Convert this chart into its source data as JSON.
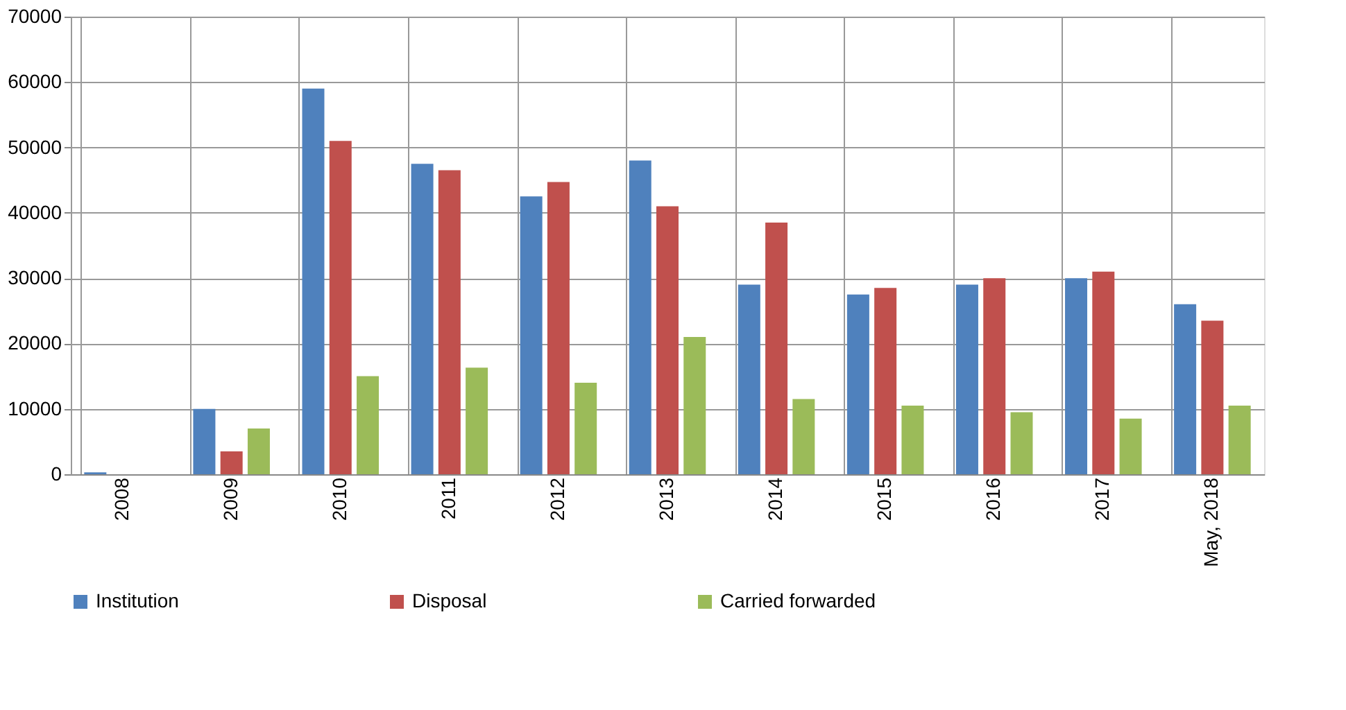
{
  "chart_data": {
    "type": "bar",
    "categories": [
      "2008",
      "2009",
      "2010",
      "2011",
      "2012",
      "2013",
      "2014",
      "2015",
      "2016",
      "2017",
      "May, 2018"
    ],
    "series": [
      {
        "name": "Institution",
        "color": "#4f81bd",
        "values": [
          300,
          10000,
          59000,
          47500,
          42500,
          48000,
          29000,
          27500,
          29000,
          30000,
          26000
        ]
      },
      {
        "name": "Disposal",
        "color": "#c0504d",
        "values": [
          null,
          3500,
          51000,
          46500,
          44700,
          41000,
          38500,
          28500,
          30000,
          31000,
          23500
        ]
      },
      {
        "name": "Carried forwarded",
        "color": "#9bbb59",
        "values": [
          null,
          7000,
          15000,
          16300,
          14000,
          21000,
          11500,
          10500,
          9500,
          8500,
          10500
        ]
      }
    ],
    "ylim": [
      0,
      70000
    ],
    "yticks": [
      0,
      10000,
      20000,
      30000,
      40000,
      50000,
      60000,
      70000
    ],
    "grid": true,
    "legend": "bottom"
  }
}
